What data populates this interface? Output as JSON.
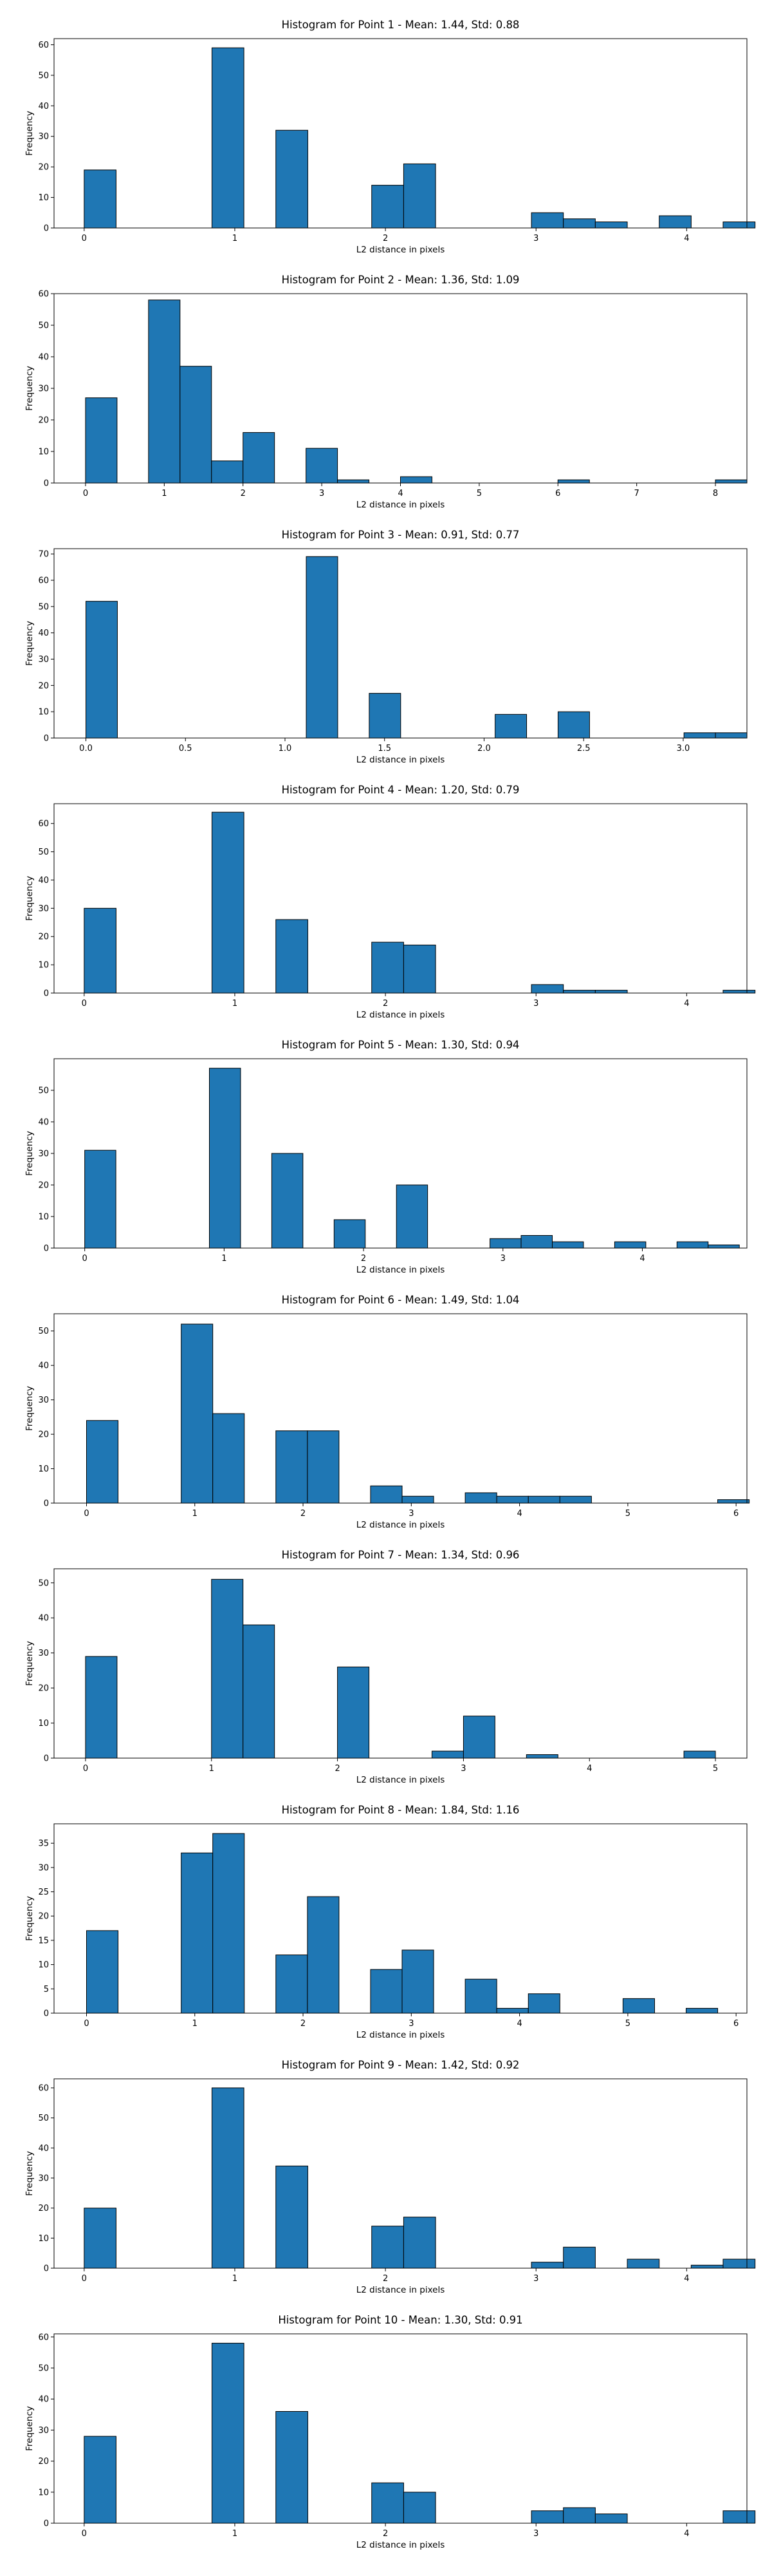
{
  "chart_data": [
    {
      "type": "bar",
      "title": "Histogram for Point 1 - Mean: 1.44, Std: 0.88",
      "xlabel": "L2 distance in pixels",
      "ylabel": "Frequency",
      "xlim": [
        -0.2,
        4.4
      ],
      "ylim": [
        0,
        62
      ],
      "xticks": [
        0,
        1,
        2,
        3,
        4
      ],
      "xtick_labels": [
        "0",
        "1",
        "2",
        "3",
        "4"
      ],
      "yticks": [
        0,
        10,
        20,
        30,
        40,
        50,
        60
      ],
      "ytick_labels": [
        "0",
        "10",
        "20",
        "30",
        "40",
        "50",
        "60"
      ],
      "bin_start": 0,
      "bin_width": 0.2121,
      "values": [
        19,
        0,
        0,
        0,
        59,
        0,
        32,
        0,
        0,
        14,
        21,
        0,
        0,
        0,
        5,
        3,
        2,
        0,
        4,
        0,
        2
      ]
    },
    {
      "type": "bar",
      "title": "Histogram for Point 2 - Mean: 1.36, Std: 1.09",
      "xlabel": "L2 distance in pixels",
      "ylabel": "Frequency",
      "xlim": [
        -0.4,
        8.4
      ],
      "ylim": [
        0,
        60
      ],
      "xticks": [
        0,
        1,
        2,
        3,
        4,
        5,
        6,
        7,
        8
      ],
      "xtick_labels": [
        "0",
        "1",
        "2",
        "3",
        "4",
        "5",
        "6",
        "7",
        "8"
      ],
      "yticks": [
        0,
        10,
        20,
        30,
        40,
        50,
        60
      ],
      "ytick_labels": [
        "0",
        "10",
        "20",
        "30",
        "40",
        "50",
        "60"
      ],
      "bin_start": 0,
      "bin_width": 0.4,
      "values": [
        27,
        0,
        58,
        37,
        7,
        16,
        0,
        11,
        1,
        0,
        2,
        0,
        0,
        0,
        0,
        1,
        0,
        0,
        0,
        0,
        1
      ]
    },
    {
      "type": "bar",
      "title": "Histogram for Point 3 - Mean: 0.91, Std: 0.77",
      "xlabel": "L2 distance in pixels",
      "ylabel": "Frequency",
      "xlim": [
        -0.16,
        3.32
      ],
      "ylim": [
        0,
        72
      ],
      "xticks": [
        0,
        0.5,
        1,
        1.5,
        2,
        2.5,
        3
      ],
      "xtick_labels": [
        "0.0",
        "0.5",
        "1.0",
        "1.5",
        "2.0",
        "2.5",
        "3.0"
      ],
      "yticks": [
        0,
        10,
        20,
        30,
        40,
        50,
        60,
        70
      ],
      "ytick_labels": [
        "0",
        "10",
        "20",
        "30",
        "40",
        "50",
        "60",
        "70"
      ],
      "bin_start": 0,
      "bin_width": 0.1581,
      "values": [
        52,
        0,
        0,
        0,
        0,
        0,
        0,
        69,
        0,
        17,
        0,
        0,
        0,
        9,
        0,
        10,
        0,
        0,
        0,
        2,
        2
      ]
    },
    {
      "type": "bar",
      "title": "Histogram for Point 4 - Mean: 1.20, Std: 0.79",
      "xlabel": "L2 distance in pixels",
      "ylabel": "Frequency",
      "xlim": [
        -0.2,
        4.4
      ],
      "ylim": [
        0,
        67
      ],
      "xticks": [
        0,
        1,
        2,
        3,
        4
      ],
      "xtick_labels": [
        "0",
        "1",
        "2",
        "3",
        "4"
      ],
      "yticks": [
        0,
        10,
        20,
        30,
        40,
        50,
        60
      ],
      "ytick_labels": [
        "0",
        "10",
        "20",
        "30",
        "40",
        "50",
        "60"
      ],
      "bin_start": 0,
      "bin_width": 0.2121,
      "values": [
        30,
        0,
        0,
        0,
        64,
        0,
        26,
        0,
        0,
        18,
        17,
        0,
        0,
        0,
        3,
        1,
        1,
        0,
        0,
        0,
        1
      ]
    },
    {
      "type": "bar",
      "title": "Histogram for Point 5 - Mean: 1.30, Std: 0.94",
      "xlabel": "L2 distance in pixels",
      "ylabel": "Frequency",
      "xlim": [
        -0.22,
        4.75
      ],
      "ylim": [
        0,
        60
      ],
      "xticks": [
        0,
        1,
        2,
        3,
        4
      ],
      "xtick_labels": [
        "0",
        "1",
        "2",
        "3",
        "4"
      ],
      "yticks": [
        0,
        10,
        20,
        30,
        40,
        50
      ],
      "ytick_labels": [
        "0",
        "10",
        "20",
        "30",
        "40",
        "50"
      ],
      "bin_start": 0,
      "bin_width": 0.2236,
      "values": [
        31,
        0,
        0,
        0,
        57,
        0,
        30,
        0,
        9,
        0,
        20,
        0,
        0,
        3,
        4,
        2,
        0,
        2,
        0,
        2,
        1
      ]
    },
    {
      "type": "bar",
      "title": "Histogram for Point 6 - Mean: 1.49, Std: 1.04",
      "xlabel": "L2 distance in pixels",
      "ylabel": "Frequency",
      "xlim": [
        -0.3,
        6.1
      ],
      "ylim": [
        0,
        55
      ],
      "xticks": [
        0,
        1,
        2,
        3,
        4,
        5,
        6
      ],
      "xtick_labels": [
        "0",
        "1",
        "2",
        "3",
        "4",
        "5",
        "6"
      ],
      "yticks": [
        0,
        10,
        20,
        30,
        40,
        50
      ],
      "ytick_labels": [
        "0",
        "10",
        "20",
        "30",
        "40",
        "50"
      ],
      "bin_start": 0,
      "bin_width": 0.2915,
      "values": [
        24,
        0,
        0,
        52,
        26,
        0,
        21,
        21,
        0,
        5,
        2,
        0,
        3,
        2,
        2,
        2,
        0,
        0,
        0,
        0,
        1
      ]
    },
    {
      "type": "bar",
      "title": "Histogram for Point 7 - Mean: 1.34, Std: 0.96",
      "xlabel": "L2 distance in pixels",
      "ylabel": "Frequency",
      "xlim": [
        -0.25,
        5.25
      ],
      "ylim": [
        0,
        54
      ],
      "xticks": [
        0,
        1,
        2,
        3,
        4,
        5
      ],
      "xtick_labels": [
        "0",
        "1",
        "2",
        "3",
        "4",
        "5"
      ],
      "yticks": [
        0,
        10,
        20,
        30,
        40,
        50
      ],
      "ytick_labels": [
        "0",
        "10",
        "20",
        "30",
        "40",
        "50"
      ],
      "bin_start": 0,
      "bin_width": 0.25,
      "values": [
        29,
        0,
        0,
        0,
        51,
        38,
        0,
        0,
        26,
        0,
        0,
        2,
        12,
        0,
        1,
        0,
        0,
        0,
        0,
        2
      ]
    },
    {
      "type": "bar",
      "title": "Histogram for Point 8 - Mean: 1.84, Std: 1.16",
      "xlabel": "L2 distance in pixels",
      "ylabel": "Frequency",
      "xlim": [
        -0.3,
        6.1
      ],
      "ylim": [
        0,
        39
      ],
      "xticks": [
        0,
        1,
        2,
        3,
        4,
        5,
        6
      ],
      "xtick_labels": [
        "0",
        "1",
        "2",
        "3",
        "4",
        "5",
        "6"
      ],
      "yticks": [
        0,
        5,
        10,
        15,
        20,
        25,
        30,
        35
      ],
      "ytick_labels": [
        "0",
        "5",
        "10",
        "15",
        "20",
        "25",
        "30",
        "35"
      ],
      "bin_start": 0,
      "bin_width": 0.2915,
      "values": [
        17,
        0,
        0,
        33,
        37,
        0,
        12,
        24,
        0,
        9,
        13,
        0,
        7,
        1,
        4,
        0,
        0,
        3,
        0,
        1
      ]
    },
    {
      "type": "bar",
      "title": "Histogram for Point 9 - Mean: 1.42, Std: 0.92",
      "xlabel": "L2 distance in pixels",
      "ylabel": "Frequency",
      "xlim": [
        -0.2,
        4.4
      ],
      "ylim": [
        0,
        63
      ],
      "xticks": [
        0,
        1,
        2,
        3,
        4
      ],
      "xtick_labels": [
        "0",
        "1",
        "2",
        "3",
        "4"
      ],
      "yticks": [
        0,
        10,
        20,
        30,
        40,
        50,
        60
      ],
      "ytick_labels": [
        "0",
        "10",
        "20",
        "30",
        "40",
        "50",
        "60"
      ],
      "bin_start": 0,
      "bin_width": 0.2121,
      "values": [
        20,
        0,
        0,
        0,
        60,
        0,
        34,
        0,
        0,
        14,
        17,
        0,
        0,
        0,
        2,
        7,
        0,
        3,
        0,
        1,
        3
      ]
    },
    {
      "type": "bar",
      "title": "Histogram for Point 10 - Mean: 1.30, Std: 0.91",
      "xlabel": "L2 distance in pixels",
      "ylabel": "Frequency",
      "xlim": [
        -0.2,
        4.4
      ],
      "ylim": [
        0,
        61
      ],
      "xticks": [
        0,
        1,
        2,
        3,
        4
      ],
      "xtick_labels": [
        "0",
        "1",
        "2",
        "3",
        "4"
      ],
      "yticks": [
        0,
        10,
        20,
        30,
        40,
        50,
        60
      ],
      "ytick_labels": [
        "0",
        "10",
        "20",
        "30",
        "40",
        "50",
        "60"
      ],
      "bin_start": 0,
      "bin_width": 0.2121,
      "values": [
        28,
        0,
        0,
        0,
        58,
        0,
        36,
        0,
        0,
        13,
        10,
        0,
        0,
        0,
        4,
        5,
        3,
        0,
        0,
        0,
        4
      ]
    }
  ]
}
